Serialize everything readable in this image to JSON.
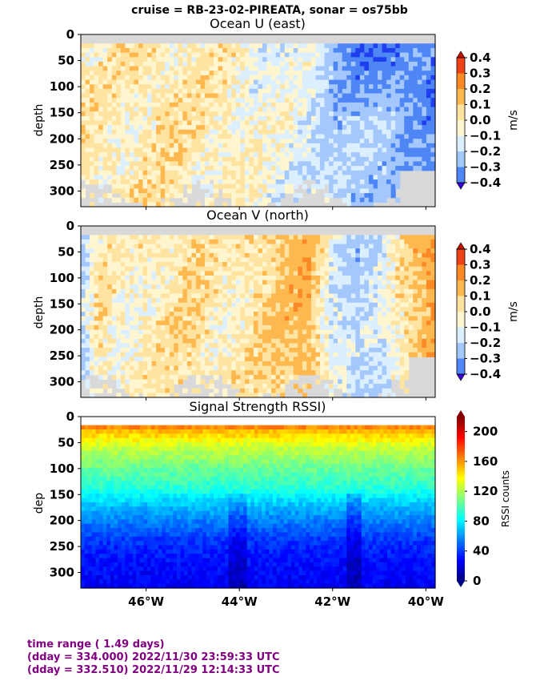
{
  "figure": {
    "suptitle": "cruise = RB-23-02-PIREATA,  sonar = os75bb"
  },
  "footer": {
    "line1": "time range ( 1.49 days)",
    "line2": "(dday = 334.000) 2022/11/30 23:59:33 UTC",
    "line3": "(dday = 332.510) 2022/11/29 12:14:33 UTC"
  },
  "colors": {
    "no_data": "#d9d9d9",
    "velocity_levels": [
      "#3a00d8",
      "#1f3ef0",
      "#4f86f5",
      "#a4c8fb",
      "#dcefff",
      "#fff6cf",
      "#ffe3a0",
      "#fdb84f",
      "#fb8a26",
      "#ef4217",
      "#c81200"
    ],
    "rssi_colormap": "jet"
  },
  "chart_data": [
    {
      "type": "heatmap",
      "title": "Ocean U (east)",
      "ylabel": "depth",
      "xlabel": "",
      "x_range_deg": [
        -47.4,
        -39.8
      ],
      "y_range": [
        330,
        0
      ],
      "yticks": [
        0,
        50,
        100,
        150,
        200,
        250,
        300
      ],
      "xtick_labels": [],
      "grid": false,
      "colorbar": {
        "label": "m/s",
        "ticks": [
          "0.4",
          "0.3",
          "0.2",
          "0.1",
          "0.0",
          "−0.1",
          "−0.2",
          "−0.3",
          "−0.4"
        ],
        "extend": "both",
        "range": [
          -0.4,
          0.4
        ]
      },
      "field": {
        "description_values": "eastward current m/s",
        "x_knots_deg": [
          -47.4,
          -46.5,
          -45.5,
          -44.5,
          -43.5,
          -42.5,
          -42.0,
          -41.5,
          -40.8,
          -40.2,
          -39.8
        ],
        "values_at_knots": [
          0.04,
          0.03,
          0.05,
          0.03,
          -0.02,
          -0.05,
          -0.12,
          -0.15,
          -0.13,
          -0.2,
          -0.25
        ],
        "upper_layer_extra": [
          0,
          0,
          0,
          0,
          0,
          0,
          -0.08,
          -0.15,
          -0.2,
          -0.05,
          0
        ]
      }
    },
    {
      "type": "heatmap",
      "title": "Ocean V (north)",
      "ylabel": "depth",
      "xlabel": "",
      "x_range_deg": [
        -47.4,
        -39.8
      ],
      "y_range": [
        330,
        0
      ],
      "yticks": [
        0,
        50,
        100,
        150,
        200,
        250,
        300
      ],
      "xtick_labels": [],
      "grid": false,
      "colorbar": {
        "label": "m/s",
        "ticks": [
          "0.4",
          "0.3",
          "0.2",
          "0.1",
          "0.0",
          "−0.1",
          "−0.2",
          "−0.3",
          "−0.4"
        ],
        "extend": "both",
        "range": [
          -0.4,
          0.4
        ]
      },
      "field": {
        "description_values": "northward current m/s",
        "x_knots_deg": [
          -47.4,
          -47.0,
          -46.5,
          -45.8,
          -45.0,
          -44.2,
          -43.2,
          -42.5,
          -42.0,
          -41.5,
          -41.0,
          -40.5,
          -39.8
        ],
        "values_at_knots": [
          -0.12,
          0.05,
          0.0,
          0.03,
          0.07,
          0.02,
          0.1,
          0.15,
          -0.05,
          -0.12,
          -0.08,
          0.05,
          0.22
        ]
      }
    },
    {
      "type": "heatmap",
      "title": "Signal Strength RSSI)",
      "ylabel": "dep",
      "xlabel": "",
      "x_range_deg": [
        -47.4,
        -39.8
      ],
      "y_range": [
        330,
        0
      ],
      "yticks": [
        0,
        50,
        100,
        150,
        200,
        250,
        300
      ],
      "xtick_labels": [
        "46°W",
        "44°W",
        "42°W",
        "40°W"
      ],
      "xtick_values_deg": [
        -46,
        -44,
        -42,
        -40
      ],
      "grid": false,
      "colorbar": {
        "label": "RSSI counts",
        "ticks": [
          "200",
          "160",
          "120",
          "80",
          "40",
          "0"
        ],
        "extend": "min",
        "range": [
          0,
          220
        ]
      },
      "field": {
        "description_values": "RSSI counts vs depth",
        "depth_profile_depths": [
          15,
          30,
          60,
          100,
          140,
          170,
          200,
          240,
          280,
          330
        ],
        "depth_profile_values": [
          170,
          150,
          125,
          105,
          90,
          70,
          55,
          38,
          30,
          25
        ]
      }
    }
  ]
}
